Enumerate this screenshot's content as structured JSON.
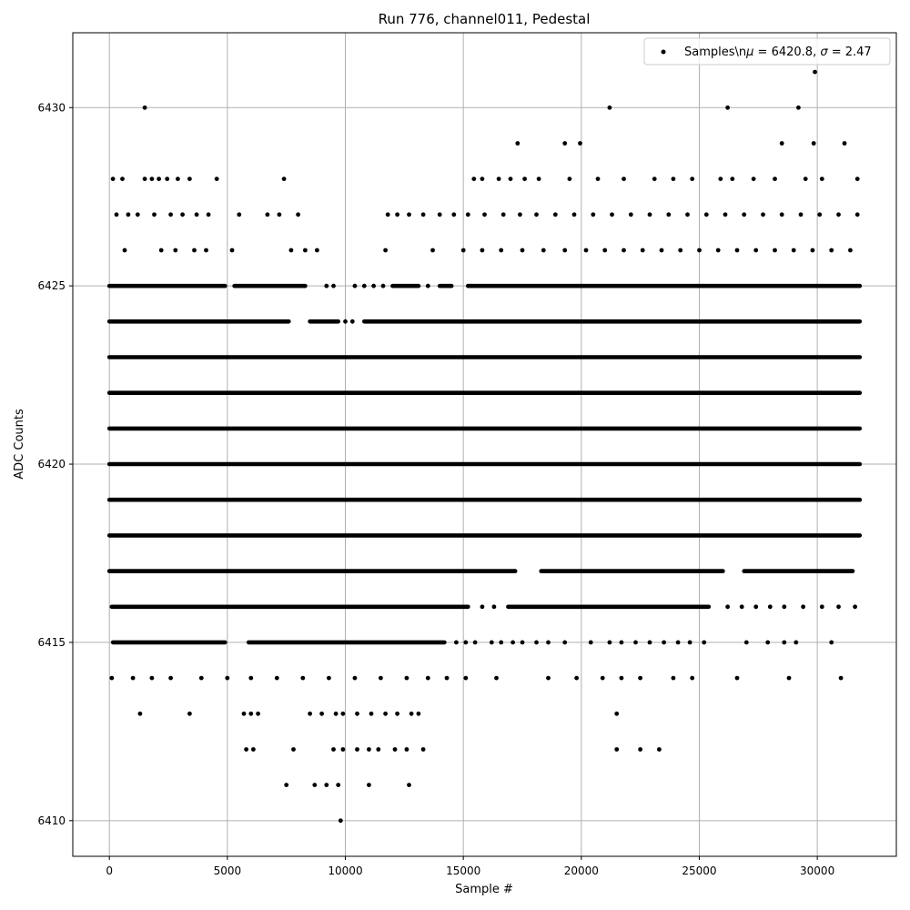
{
  "chart_data": {
    "type": "scatter",
    "title": "Run 776, channel011, Pedestal",
    "xlabel": "Sample #",
    "ylabel": "ADC Counts",
    "xlim": [
      -1550,
      33350
    ],
    "ylim": [
      6409.0,
      6432.1
    ],
    "xticks": [
      0,
      5000,
      10000,
      15000,
      20000,
      25000,
      30000
    ],
    "yticks": [
      6410,
      6415,
      6420,
      6425,
      6430
    ],
    "grid": true,
    "legend": {
      "location": "top-right",
      "label": "Samples\\nμ = 6420.8, σ = 2.47",
      "label_prefix": "Samples\\n",
      "label_mu": "μ",
      "label_mu_value": " = 6420.8, ",
      "label_sigma": "σ",
      "label_sigma_value": " = 2.47"
    },
    "series": [
      {
        "name": "Samples",
        "color": "#000000",
        "marker": "dot",
        "points": [
          [
            1500,
            6430
          ],
          [
            21200,
            6430
          ],
          [
            26200,
            6430
          ],
          [
            29200,
            6430
          ],
          [
            29900,
            6431
          ],
          [
            17300,
            6429
          ],
          [
            19300,
            6429
          ],
          [
            19950,
            6429
          ],
          [
            28500,
            6429
          ],
          [
            29850,
            6429
          ],
          [
            31150,
            6429
          ],
          [
            150,
            6428
          ],
          [
            550,
            6428
          ],
          [
            1500,
            6428
          ],
          [
            1800,
            6428
          ],
          [
            2100,
            6428
          ],
          [
            2450,
            6428
          ],
          [
            2900,
            6428
          ],
          [
            3400,
            6428
          ],
          [
            4550,
            6428
          ],
          [
            7400,
            6428
          ],
          [
            15450,
            6428
          ],
          [
            15800,
            6428
          ],
          [
            16500,
            6428
          ],
          [
            17000,
            6428
          ],
          [
            17600,
            6428
          ],
          [
            18200,
            6428
          ],
          [
            19500,
            6428
          ],
          [
            20700,
            6428
          ],
          [
            21800,
            6428
          ],
          [
            23100,
            6428
          ],
          [
            23900,
            6428
          ],
          [
            24700,
            6428
          ],
          [
            25900,
            6428
          ],
          [
            26400,
            6428
          ],
          [
            27300,
            6428
          ],
          [
            28200,
            6428
          ],
          [
            29500,
            6428
          ],
          [
            30200,
            6428
          ],
          [
            31700,
            6428
          ],
          [
            300,
            6427
          ],
          [
            800,
            6427
          ],
          [
            1200,
            6427
          ],
          [
            1900,
            6427
          ],
          [
            2600,
            6427
          ],
          [
            3100,
            6427
          ],
          [
            3700,
            6427
          ],
          [
            4200,
            6427
          ],
          [
            5500,
            6427
          ],
          [
            6700,
            6427
          ],
          [
            7200,
            6427
          ],
          [
            8000,
            6427
          ],
          [
            11800,
            6427
          ],
          [
            12200,
            6427
          ],
          [
            12700,
            6427
          ],
          [
            13300,
            6427
          ],
          [
            14000,
            6427
          ],
          [
            14600,
            6427
          ],
          [
            15200,
            6427
          ],
          [
            15900,
            6427
          ],
          [
            16700,
            6427
          ],
          [
            17400,
            6427
          ],
          [
            18100,
            6427
          ],
          [
            18900,
            6427
          ],
          [
            19700,
            6427
          ],
          [
            20500,
            6427
          ],
          [
            21300,
            6427
          ],
          [
            22100,
            6427
          ],
          [
            22900,
            6427
          ],
          [
            23700,
            6427
          ],
          [
            24500,
            6427
          ],
          [
            25300,
            6427
          ],
          [
            26100,
            6427
          ],
          [
            26900,
            6427
          ],
          [
            27700,
            6427
          ],
          [
            28500,
            6427
          ],
          [
            29300,
            6427
          ],
          [
            30100,
            6427
          ],
          [
            30900,
            6427
          ],
          [
            31700,
            6427
          ],
          [
            650,
            6426
          ],
          [
            2200,
            6426
          ],
          [
            2800,
            6426
          ],
          [
            3600,
            6426
          ],
          [
            4100,
            6426
          ],
          [
            5200,
            6426
          ],
          [
            7700,
            6426
          ],
          [
            8300,
            6426
          ],
          [
            8800,
            6426
          ],
          [
            11700,
            6426
          ],
          [
            13700,
            6426
          ],
          [
            15000,
            6426
          ],
          [
            15800,
            6426
          ],
          [
            16600,
            6426
          ],
          [
            17500,
            6426
          ],
          [
            18400,
            6426
          ],
          [
            19300,
            6426
          ],
          [
            20200,
            6426
          ],
          [
            21000,
            6426
          ],
          [
            21800,
            6426
          ],
          [
            22600,
            6426
          ],
          [
            23400,
            6426
          ],
          [
            24200,
            6426
          ],
          [
            25000,
            6426
          ],
          [
            25800,
            6426
          ],
          [
            26600,
            6426
          ],
          [
            27400,
            6426
          ],
          [
            28200,
            6426
          ],
          [
            29000,
            6426
          ],
          [
            29800,
            6426
          ],
          [
            30600,
            6426
          ],
          [
            31400,
            6426
          ],
          [
            1300,
            6413
          ],
          [
            3400,
            6413
          ],
          [
            5700,
            6413
          ],
          [
            6000,
            6413
          ],
          [
            6300,
            6413
          ],
          [
            8500,
            6413
          ],
          [
            9000,
            6413
          ],
          [
            9600,
            6413
          ],
          [
            9900,
            6413
          ],
          [
            10500,
            6413
          ],
          [
            11100,
            6413
          ],
          [
            11700,
            6413
          ],
          [
            12200,
            6413
          ],
          [
            12800,
            6413
          ],
          [
            13100,
            6413
          ],
          [
            21500,
            6413
          ],
          [
            5800,
            6412
          ],
          [
            6100,
            6412
          ],
          [
            7800,
            6412
          ],
          [
            9500,
            6412
          ],
          [
            9900,
            6412
          ],
          [
            10500,
            6412
          ],
          [
            11000,
            6412
          ],
          [
            11400,
            6412
          ],
          [
            12100,
            6412
          ],
          [
            12600,
            6412
          ],
          [
            13300,
            6412
          ],
          [
            21500,
            6412
          ],
          [
            22500,
            6412
          ],
          [
            23300,
            6412
          ],
          [
            7500,
            6411
          ],
          [
            8700,
            6411
          ],
          [
            9200,
            6411
          ],
          [
            9700,
            6411
          ],
          [
            11000,
            6411
          ],
          [
            12700,
            6411
          ],
          [
            9800,
            6410
          ],
          [
            100,
            6414
          ],
          [
            1000,
            6414
          ],
          [
            1800,
            6414
          ],
          [
            2600,
            6414
          ],
          [
            3900,
            6414
          ],
          [
            5000,
            6414
          ],
          [
            6000,
            6414
          ],
          [
            7100,
            6414
          ],
          [
            8200,
            6414
          ],
          [
            9300,
            6414
          ],
          [
            10400,
            6414
          ],
          [
            11500,
            6414
          ],
          [
            12600,
            6414
          ],
          [
            13500,
            6414
          ],
          [
            14300,
            6414
          ],
          [
            15100,
            6414
          ],
          [
            16400,
            6414
          ],
          [
            18600,
            6414
          ],
          [
            19800,
            6414
          ],
          [
            20900,
            6414
          ],
          [
            21700,
            6414
          ],
          [
            22500,
            6414
          ],
          [
            23900,
            6414
          ],
          [
            24700,
            6414
          ],
          [
            26600,
            6414
          ],
          [
            28800,
            6414
          ],
          [
            31000,
            6414
          ]
        ],
        "bands": [
          {
            "y": 6415,
            "ranges": [
              [
                150,
                4900
              ],
              [
                5900,
                14200
              ]
            ],
            "extra": [
              14700,
              15100,
              15500,
              16200,
              16600,
              17100,
              17500,
              18100,
              18600,
              19300,
              20400,
              21200,
              21700,
              22300,
              22900,
              23500,
              24100,
              24600,
              25200,
              27000,
              27900,
              28600,
              29100,
              30600
            ]
          },
          {
            "y": 6416,
            "ranges": [
              [
                100,
                15200
              ],
              [
                16900,
                25400
              ]
            ],
            "extra": [
              15800,
              16300,
              26200,
              26800,
              27400,
              28000,
              28600,
              29400,
              30200,
              30900,
              31600
            ]
          },
          {
            "y": 6417,
            "ranges": [
              [
                0,
                17200
              ],
              [
                18300,
                26000
              ],
              [
                26900,
                31500
              ]
            ],
            "extra": []
          },
          {
            "y": 6418,
            "ranges": [
              [
                0,
                31800
              ]
            ],
            "extra": []
          },
          {
            "y": 6419,
            "ranges": [
              [
                0,
                31800
              ]
            ],
            "extra": []
          },
          {
            "y": 6420,
            "ranges": [
              [
                0,
                31800
              ]
            ],
            "extra": []
          },
          {
            "y": 6421,
            "ranges": [
              [
                0,
                31800
              ]
            ],
            "extra": []
          },
          {
            "y": 6422,
            "ranges": [
              [
                0,
                31800
              ]
            ],
            "extra": []
          },
          {
            "y": 6423,
            "ranges": [
              [
                0,
                31800
              ]
            ],
            "extra": []
          },
          {
            "y": 6424,
            "ranges": [
              [
                0,
                7600
              ],
              [
                8500,
                9700
              ],
              [
                10800,
                31800
              ]
            ],
            "extra": [
              10000,
              10300
            ]
          },
          {
            "y": 6425,
            "ranges": [
              [
                0,
                4900
              ],
              [
                5300,
                8300
              ],
              [
                12000,
                13100
              ],
              [
                14000,
                14500
              ],
              [
                15200,
                31800
              ]
            ],
            "extra": [
              9200,
              9500,
              10400,
              10800,
              11200,
              11600,
              13500
            ]
          }
        ]
      }
    ]
  }
}
